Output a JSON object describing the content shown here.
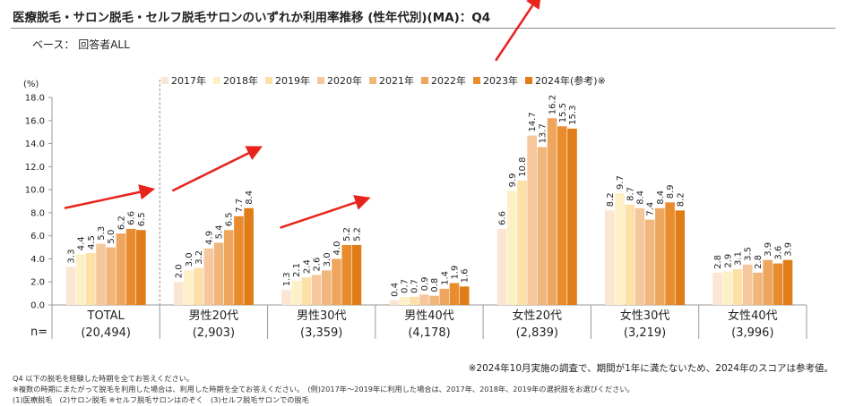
{
  "header": {
    "title": "医療脱毛・サロン脱毛・セルフ脱毛サロンのいずれか利用率推移 (性年代別)(MA)：Q4",
    "base": "ベース： 回答者ALL"
  },
  "chart_data": {
    "type": "bar",
    "ylabel": "(%)",
    "ylim": [
      0,
      18
    ],
    "yticks": [
      "0.0",
      "2.0",
      "4.0",
      "6.0",
      "8.0",
      "10.0",
      "12.0",
      "14.0",
      "16.0",
      "18.0"
    ],
    "n_label": "n=",
    "categories": [
      {
        "name": "TOTAL",
        "n": "(20,494)",
        "values": [
          3.3,
          4.4,
          4.5,
          5.3,
          5.0,
          6.2,
          6.6,
          6.5
        ],
        "labels": [
          "3.3",
          "4.4",
          "4.5",
          "5.3",
          "5.0",
          "6.2",
          "6.6",
          "6.5"
        ]
      },
      {
        "name": "男性20代",
        "n": "(2,903)",
        "values": [
          2.0,
          3.0,
          3.2,
          4.9,
          5.4,
          6.5,
          7.7,
          8.4
        ],
        "labels": [
          "2.0",
          "3.0",
          "3.2",
          "4.9",
          "5.4",
          "6.5",
          "7.7",
          "8.4"
        ]
      },
      {
        "name": "男性30代",
        "n": "(3,359)",
        "values": [
          1.3,
          2.1,
          2.4,
          2.6,
          3.0,
          4.0,
          5.2,
          5.2
        ],
        "labels": [
          "1.3",
          "2.1",
          "2.4",
          "2.6",
          "3.0",
          "4.0",
          "5.2",
          "5.2"
        ]
      },
      {
        "name": "男性40代",
        "n": "(4,178)",
        "values": [
          0.4,
          0.7,
          0.7,
          0.9,
          0.8,
          1.4,
          1.9,
          1.6
        ],
        "labels": [
          "0.4",
          "0.7",
          "0.7",
          "0.9",
          "0.8",
          "1.4",
          "1.9",
          "1.6"
        ]
      },
      {
        "name": "女性20代",
        "n": "(2,839)",
        "values": [
          6.6,
          9.9,
          10.8,
          14.7,
          13.7,
          16.2,
          15.5,
          15.3
        ],
        "labels": [
          "6.6",
          "9.9",
          "10.8",
          "14.7",
          "13.7",
          "16.2",
          "15.5",
          "15.3"
        ]
      },
      {
        "name": "女性30代",
        "n": "(3,219)",
        "values": [
          8.2,
          9.7,
          8.7,
          8.4,
          7.4,
          8.4,
          8.9,
          8.2
        ],
        "labels": [
          "8.2",
          "9.7",
          "8.7",
          "8.4",
          "7.4",
          "8.4",
          "8.9",
          "8.2"
        ]
      },
      {
        "name": "女性40代",
        "n": "(3,996)",
        "values": [
          2.8,
          2.9,
          3.1,
          3.5,
          2.8,
          3.9,
          3.6,
          3.9
        ],
        "labels": [
          "2.8",
          "2.9",
          "3.1",
          "3.5",
          "2.8",
          "3.9",
          "3.6",
          "3.9"
        ]
      }
    ],
    "series": [
      {
        "name": "2017年",
        "color": "#fbe5d3"
      },
      {
        "name": "2018年",
        "color": "#fdf0c6"
      },
      {
        "name": "2019年",
        "color": "#fbe0a8"
      },
      {
        "name": "2020年",
        "color": "#f6c79c"
      },
      {
        "name": "2021年",
        "color": "#f1b67c"
      },
      {
        "name": "2022年",
        "color": "#eea55d"
      },
      {
        "name": "2023年",
        "color": "#e98c2e"
      },
      {
        "name": "2024年(参考)※",
        "color": "#e07d18"
      }
    ],
    "arrow_color": "#e8231b"
  },
  "footnotes": {
    "right": "※2024年10月実施の調査で、期間が1年に満たないため、2024年のスコアは参考値。",
    "notes": [
      "Q4 以下の脱毛を経験した時期を全てお答えください。",
      "※複数の時期にまたがって脱毛を利用した場合は、利用した時期を全てお答えください。　(例)2017年～2019年に利用した場合は、2017年、2018年、2019年の選択肢をお選びください。",
      "(1)医療脱毛　(2)サロン脱毛 ※セルフ脱毛サロンはのぞく　(3)セルフ脱毛サロンでの脱毛"
    ]
  }
}
